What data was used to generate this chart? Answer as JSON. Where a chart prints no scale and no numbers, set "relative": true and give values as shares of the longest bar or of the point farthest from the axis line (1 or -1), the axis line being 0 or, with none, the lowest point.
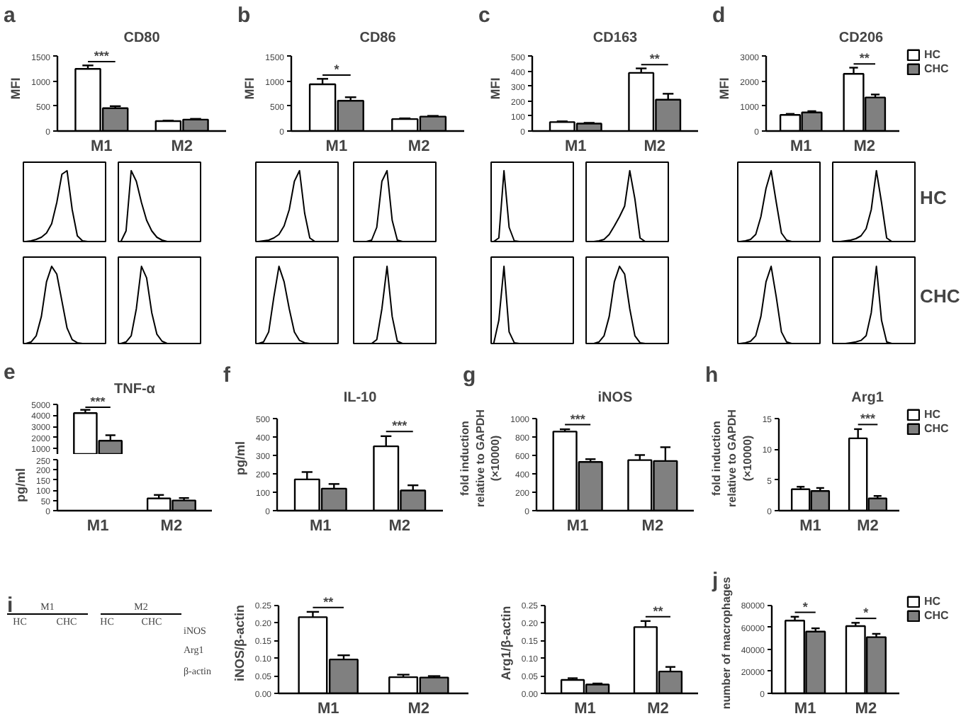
{
  "chart_data": [
    {
      "type": "bar",
      "title": "CD80",
      "ylabel": "MFI",
      "categories": [
        "M1",
        "M2"
      ],
      "series": [
        {
          "color": "#ffffff",
          "values": [
            1250,
            200
          ],
          "errors": [
            70,
            10
          ]
        },
        {
          "color": "#808080",
          "values": [
            460,
            230
          ],
          "errors": [
            40,
            15
          ]
        }
      ],
      "ylim": [
        0,
        1500
      ],
      "yticks": [
        0,
        500,
        1000,
        1500
      ],
      "annotations": [
        "a",
        "***"
      ]
    },
    {
      "type": "bar",
      "title": "CD86",
      "ylabel": "MFI",
      "categories": [
        "M1",
        "M2"
      ],
      "series": [
        {
          "color": "#ffffff",
          "values": [
            940,
            240
          ],
          "errors": [
            110,
            15
          ]
        },
        {
          "color": "#808080",
          "values": [
            610,
            290
          ],
          "errors": [
            70,
            15
          ]
        }
      ],
      "ylim": [
        0,
        1500
      ],
      "yticks": [
        0,
        500,
        1000,
        1500
      ],
      "annotations": [
        "b",
        "*"
      ]
    },
    {
      "type": "bar",
      "title": "CD163",
      "ylabel": "MFI",
      "categories": [
        "M1",
        "M2"
      ],
      "series": [
        {
          "color": "#ffffff",
          "values": [
            60,
            390
          ],
          "errors": [
            5,
            30
          ]
        },
        {
          "color": "#808080",
          "values": [
            50,
            210
          ],
          "errors": [
            5,
            40
          ]
        }
      ],
      "ylim": [
        0,
        500
      ],
      "yticks": [
        0,
        100,
        200,
        300,
        400,
        500
      ],
      "annotations": [
        "c",
        "**"
      ]
    },
    {
      "type": "bar",
      "title": "CD206",
      "ylabel": "MFI",
      "categories": [
        "M1",
        "M2"
      ],
      "series": [
        {
          "name": "HC",
          "color": "#ffffff",
          "values": [
            650,
            2300
          ],
          "errors": [
            40,
            250
          ]
        },
        {
          "name": "CHC",
          "color": "#808080",
          "values": [
            750,
            1350
          ],
          "errors": [
            50,
            120
          ]
        }
      ],
      "ylim": [
        0,
        3000
      ],
      "yticks": [
        0,
        1000,
        2000,
        3000
      ],
      "legend": "right",
      "annotations": [
        "d",
        "**"
      ]
    },
    {
      "type": "line",
      "relative": true,
      "tick_labels": false,
      "categories": [
        null,
        null,
        null,
        null,
        null,
        null,
        null,
        null,
        null,
        null,
        null,
        null,
        null,
        null,
        null,
        null
      ],
      "series": [
        {
          "color": "#000000",
          "values": [
            0,
            0.01,
            0.03,
            0.06,
            0.12,
            0.25,
            0.55,
            0.95,
            1,
            0.45,
            0.08,
            0.01,
            0,
            0,
            0,
            0
          ]
        }
      ]
    },
    {
      "type": "line",
      "relative": true,
      "tick_labels": false,
      "categories": [
        null,
        null,
        null,
        null,
        null,
        null,
        null,
        null,
        null,
        null,
        null,
        null,
        null,
        null,
        null,
        null
      ],
      "series": [
        {
          "color": "#000000",
          "values": [
            0,
            0.15,
            1,
            0.85,
            0.55,
            0.3,
            0.15,
            0.06,
            0.02,
            0,
            0,
            0,
            0,
            0,
            0,
            0
          ]
        }
      ]
    },
    {
      "type": "line",
      "relative": true,
      "tick_labels": false,
      "categories": [
        null,
        null,
        null,
        null,
        null,
        null,
        null,
        null,
        null,
        null,
        null,
        null,
        null,
        null,
        null,
        null
      ],
      "series": [
        {
          "color": "#000000",
          "values": [
            0,
            0.01,
            0.02,
            0.05,
            0.1,
            0.22,
            0.45,
            0.85,
            1,
            0.4,
            0.05,
            0,
            0,
            0,
            0,
            0
          ]
        }
      ]
    },
    {
      "type": "line",
      "relative": true,
      "tick_labels": false,
      "categories": [
        null,
        null,
        null,
        null,
        null,
        null,
        null,
        null,
        null,
        null,
        null,
        null,
        null,
        null,
        null,
        null
      ],
      "series": [
        {
          "color": "#000000",
          "values": [
            0,
            0,
            0,
            0.02,
            0.2,
            0.85,
            1,
            0.3,
            0.02,
            0,
            0,
            0,
            0,
            0,
            0,
            0
          ]
        }
      ]
    },
    {
      "type": "line",
      "relative": true,
      "tick_labels": false,
      "categories": [
        null,
        null,
        null,
        null,
        null,
        null,
        null,
        null,
        null,
        null,
        null,
        null,
        null,
        null,
        null,
        null
      ],
      "series": [
        {
          "color": "#000000",
          "values": [
            0,
            0.05,
            1,
            0.2,
            0.01,
            0,
            0,
            0,
            0,
            0,
            0,
            0,
            0,
            0,
            0,
            0
          ]
        }
      ]
    },
    {
      "type": "line",
      "relative": true,
      "tick_labels": false,
      "categories": [
        null,
        null,
        null,
        null,
        null,
        null,
        null,
        null,
        null,
        null,
        null,
        null,
        null,
        null,
        null,
        null
      ],
      "series": [
        {
          "color": "#000000",
          "values": [
            0,
            0,
            0.01,
            0.03,
            0.1,
            0.22,
            0.35,
            0.5,
            1,
            0.6,
            0.05,
            0,
            0,
            0,
            0,
            0
          ]
        }
      ]
    },
    {
      "type": "line",
      "relative": true,
      "tick_labels": false,
      "categories": [
        null,
        null,
        null,
        null,
        null,
        null,
        null,
        null,
        null,
        null,
        null,
        null,
        null,
        null,
        null,
        null
      ],
      "series": [
        {
          "color": "#000000",
          "values": [
            0,
            0.01,
            0.03,
            0.1,
            0.35,
            0.75,
            1,
            0.55,
            0.12,
            0.02,
            0,
            0,
            0,
            0,
            0,
            0
          ]
        }
      ]
    },
    {
      "type": "line",
      "relative": true,
      "tick_labels": false,
      "categories": [
        null,
        null,
        null,
        null,
        null,
        null,
        null,
        null,
        null,
        null,
        null,
        null,
        null,
        null,
        null,
        null
      ],
      "series": [
        {
          "color": "#000000",
          "values": [
            0,
            0,
            0.01,
            0.02,
            0.04,
            0.08,
            0.18,
            0.45,
            1,
            0.55,
            0.05,
            0,
            0,
            0,
            0,
            0
          ]
        }
      ]
    },
    {
      "type": "other",
      "annotations": [
        "HC"
      ]
    },
    {
      "type": "line",
      "relative": true,
      "tick_labels": false,
      "categories": [
        null,
        null,
        null,
        null,
        null,
        null,
        null,
        null,
        null,
        null,
        null,
        null,
        null,
        null,
        null,
        null
      ],
      "series": [
        {
          "color": "#000000",
          "values": [
            0,
            0.02,
            0.1,
            0.35,
            0.8,
            1,
            0.9,
            0.55,
            0.2,
            0.05,
            0.01,
            0,
            0,
            0,
            0,
            0
          ]
        }
      ]
    },
    {
      "type": "line",
      "relative": true,
      "tick_labels": false,
      "categories": [
        null,
        null,
        null,
        null,
        null,
        null,
        null,
        null,
        null,
        null,
        null,
        null,
        null,
        null,
        null,
        null
      ],
      "series": [
        {
          "color": "#000000",
          "values": [
            0,
            0.02,
            0.1,
            0.45,
            1,
            0.85,
            0.4,
            0.12,
            0.03,
            0,
            0,
            0,
            0,
            0,
            0,
            0
          ]
        }
      ]
    },
    {
      "type": "line",
      "relative": true,
      "tick_labels": false,
      "categories": [
        null,
        null,
        null,
        null,
        null,
        null,
        null,
        null,
        null,
        null,
        null,
        null,
        null,
        null,
        null,
        null
      ],
      "series": [
        {
          "color": "#000000",
          "values": [
            0,
            0.02,
            0.15,
            0.6,
            1,
            0.8,
            0.45,
            0.15,
            0.04,
            0.01,
            0,
            0,
            0,
            0,
            0,
            0
          ]
        }
      ]
    },
    {
      "type": "line",
      "relative": true,
      "tick_labels": false,
      "categories": [
        null,
        null,
        null,
        null,
        null,
        null,
        null,
        null,
        null,
        null,
        null,
        null,
        null,
        null,
        null,
        null
      ],
      "series": [
        {
          "color": "#000000",
          "values": [
            0,
            0,
            0,
            0,
            0.05,
            0.45,
            1,
            0.35,
            0.03,
            0,
            0,
            0,
            0,
            0,
            0,
            0
          ]
        }
      ]
    },
    {
      "type": "line",
      "relative": true,
      "tick_labels": false,
      "categories": [
        null,
        null,
        null,
        null,
        null,
        null,
        null,
        null,
        null,
        null,
        null,
        null,
        null,
        null,
        null,
        null
      ],
      "series": [
        {
          "color": "#000000",
          "values": [
            0,
            0.3,
            1,
            0.15,
            0.01,
            0,
            0,
            0,
            0,
            0,
            0,
            0,
            0,
            0,
            0,
            0
          ]
        }
      ]
    },
    {
      "type": "line",
      "relative": true,
      "tick_labels": false,
      "categories": [
        null,
        null,
        null,
        null,
        null,
        null,
        null,
        null,
        null,
        null,
        null,
        null,
        null,
        null,
        null,
        null
      ],
      "series": [
        {
          "color": "#000000",
          "values": [
            0,
            0,
            0.02,
            0.1,
            0.35,
            0.8,
            1,
            0.9,
            0.45,
            0.1,
            0.01,
            0,
            0,
            0,
            0,
            0
          ]
        }
      ]
    },
    {
      "type": "line",
      "relative": true,
      "tick_labels": false,
      "categories": [
        null,
        null,
        null,
        null,
        null,
        null,
        null,
        null,
        null,
        null,
        null,
        null,
        null,
        null,
        null,
        null
      ],
      "series": [
        {
          "color": "#000000",
          "values": [
            0,
            0.01,
            0.03,
            0.1,
            0.35,
            0.8,
            1,
            0.6,
            0.15,
            0.02,
            0,
            0,
            0,
            0,
            0,
            0
          ]
        }
      ]
    },
    {
      "type": "line",
      "relative": true,
      "tick_labels": false,
      "categories": [
        null,
        null,
        null,
        null,
        null,
        null,
        null,
        null,
        null,
        null,
        null,
        null,
        null,
        null,
        null,
        null
      ],
      "series": [
        {
          "color": "#000000",
          "values": [
            0,
            0,
            0,
            0.01,
            0.02,
            0.04,
            0.1,
            0.4,
            1,
            0.3,
            0.02,
            0,
            0,
            0,
            0,
            0
          ]
        }
      ]
    },
    {
      "type": "other",
      "annotations": [
        "CHC"
      ]
    },
    {
      "type": "bar",
      "title": "TNF-α",
      "series": [
        {
          "color": "#ffffff",
          "values": [
            4200,
            null
          ],
          "errors": [
            300,
            null
          ]
        },
        {
          "color": "#808080",
          "values": [
            1700,
            null
          ],
          "errors": [
            500,
            null
          ]
        }
      ],
      "ylim": [
        500,
        5000
      ],
      "yticks": [
        1000,
        2000,
        3000,
        4000,
        5000
      ],
      "tick_labels": "y",
      "annotations": [
        "e",
        "***"
      ]
    },
    {
      "type": "bar",
      "ylabel": "pg/ml",
      "categories": [
        "M1",
        "M2"
      ],
      "series": [
        {
          "color": "#ffffff",
          "values": [
            null,
            60
          ],
          "errors": [
            null,
            17
          ]
        },
        {
          "color": "#808080",
          "values": [
            null,
            50
          ],
          "errors": [
            null,
            12
          ]
        }
      ],
      "ylim": [
        0,
        250
      ],
      "yticks": [
        0,
        50,
        100,
        150,
        200,
        250
      ]
    },
    {
      "type": "bar",
      "title": "IL-10",
      "ylabel": "pg/ml",
      "categories": [
        "M1",
        "M2"
      ],
      "series": [
        {
          "color": "#ffffff",
          "values": [
            170,
            350
          ],
          "errors": [
            40,
            55
          ]
        },
        {
          "color": "#808080",
          "values": [
            120,
            110
          ],
          "errors": [
            25,
            28
          ]
        }
      ],
      "ylim": [
        0,
        500
      ],
      "yticks": [
        0,
        100,
        200,
        300,
        400,
        500
      ],
      "annotations": [
        "f",
        "***"
      ]
    },
    {
      "type": "bar",
      "title": "iNOS",
      "ylabel": "fold induction\nrelative to GAPDH\n(×10000)",
      "categories": [
        "M1",
        "M2"
      ],
      "series": [
        {
          "color": "#ffffff",
          "values": [
            860,
            550
          ],
          "errors": [
            25,
            55
          ]
        },
        {
          "color": "#808080",
          "values": [
            530,
            540
          ],
          "errors": [
            30,
            150
          ]
        }
      ],
      "ylim": [
        0,
        1000
      ],
      "yticks": [
        0,
        200,
        400,
        600,
        800,
        1000
      ],
      "annotations": [
        "g",
        "***"
      ]
    },
    {
      "type": "bar",
      "title": "Arg1",
      "ylabel": "fold induction\nrelative to GAPDH\n(×10000)",
      "categories": [
        "M1",
        "M2"
      ],
      "series": [
        {
          "name": "HC",
          "color": "#ffffff",
          "values": [
            3.5,
            11.8
          ],
          "errors": [
            0.4,
            1.5
          ]
        },
        {
          "name": "CHC",
          "color": "#808080",
          "values": [
            3.2,
            2.0
          ],
          "errors": [
            0.5,
            0.4
          ]
        }
      ],
      "ylim": [
        0,
        15
      ],
      "yticks": [
        0,
        5,
        10,
        15
      ],
      "legend": "right",
      "annotations": [
        "h",
        "***"
      ]
    },
    {
      "type": "other",
      "annotations": [
        "i",
        "M1",
        "M2",
        "HC",
        "CHC",
        "HC",
        "CHC",
        "iNOS",
        "Arg1",
        "β-actin"
      ]
    },
    {
      "type": "bar",
      "ylabel": "iNOS/β-actin",
      "categories": [
        "M1",
        "M2"
      ],
      "series": [
        {
          "color": "#ffffff",
          "values": [
            0.216,
            0.046
          ],
          "errors": [
            0.015,
            0.007
          ]
        },
        {
          "color": "#808080",
          "values": [
            0.096,
            0.045
          ],
          "errors": [
            0.012,
            0.004
          ]
        }
      ],
      "ylim": [
        0,
        0.25
      ],
      "yticks": [
        {
          "value": 0,
          "label": "0.00"
        },
        {
          "value": 0.05,
          "label": "0.05"
        },
        {
          "value": 0.1,
          "label": "0.10"
        },
        {
          "value": 0.15,
          "label": "0.15"
        },
        {
          "value": 0.2,
          "label": "0.20"
        },
        {
          "value": 0.25,
          "label": "0.25"
        }
      ],
      "annotations": [
        "**"
      ]
    },
    {
      "type": "bar",
      "ylabel": "Arg1/β-actin",
      "categories": [
        "M1",
        "M2"
      ],
      "series": [
        {
          "color": "#ffffff",
          "values": [
            0.038,
            0.188
          ],
          "errors": [
            0.005,
            0.017
          ]
        },
        {
          "color": "#808080",
          "values": [
            0.025,
            0.062
          ],
          "errors": [
            0.003,
            0.013
          ]
        }
      ],
      "ylim": [
        0,
        0.25
      ],
      "yticks": [
        {
          "value": 0,
          "label": "0.00"
        },
        {
          "value": 0.05,
          "label": "0.05"
        },
        {
          "value": 0.1,
          "label": "0.10"
        },
        {
          "value": 0.15,
          "label": "0.15"
        },
        {
          "value": 0.2,
          "label": "0.20"
        },
        {
          "value": 0.25,
          "label": "0.25"
        }
      ],
      "annotations": [
        "**"
      ]
    },
    {
      "type": "bar",
      "ylabel": "number of macrophages",
      "categories": [
        "M1",
        "M2"
      ],
      "series": [
        {
          "name": "HC",
          "color": "#ffffff",
          "values": [
            66000,
            61000
          ],
          "errors": [
            3500,
            3000
          ]
        },
        {
          "name": "CHC",
          "color": "#808080",
          "values": [
            56000,
            51000
          ],
          "errors": [
            3000,
            3000
          ]
        }
      ],
      "ylim": [
        0,
        80000
      ],
      "yticks": [
        0,
        20000,
        40000,
        60000,
        80000
      ],
      "legend": "right",
      "annotations": [
        "j",
        "*",
        "*"
      ]
    }
  ]
}
